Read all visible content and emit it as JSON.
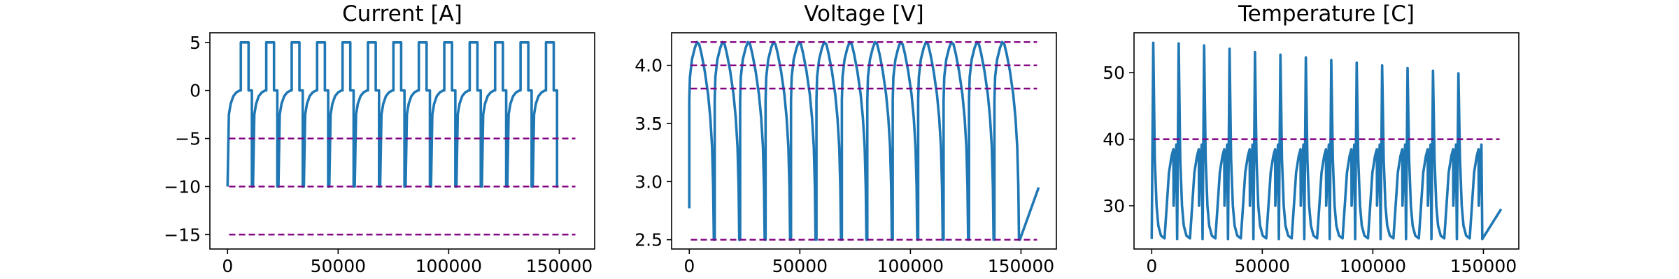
{
  "chart_data": [
    {
      "type": "line",
      "title": "Current [A]",
      "xlabel": "",
      "ylabel": "",
      "xlim": [
        -8000,
        166000
      ],
      "ylim": [
        -16.5,
        6
      ],
      "xticks": [
        0,
        50000,
        100000,
        150000
      ],
      "yticks": [
        5,
        0,
        -5,
        -10,
        -15
      ],
      "reference_lines": [
        -5,
        -10,
        -15
      ],
      "cycle_period": 11500,
      "num_cycles": 13,
      "x_end": 158000,
      "series": [
        {
          "values_per_cycle": [
            {
              "x": 0,
              "y": -10
            },
            {
              "x": 600,
              "y": -2.5
            },
            {
              "x": 1400,
              "y": -1.4
            },
            {
              "x": 2600,
              "y": -0.6
            },
            {
              "x": 4000,
              "y": -0.2
            },
            {
              "x": 5500,
              "y": 0
            },
            {
              "x": 6000,
              "y": 0
            },
            {
              "x": 6000,
              "y": 5
            },
            {
              "x": 9500,
              "y": 5
            },
            {
              "x": 9500,
              "y": 0
            },
            {
              "x": 11000,
              "y": 0
            },
            {
              "x": 11000,
              "y": -10
            },
            {
              "x": 11500,
              "y": -10
            }
          ]
        }
      ]
    },
    {
      "type": "line",
      "title": "Voltage [V]",
      "xlabel": "",
      "ylabel": "",
      "xlim": [
        -8000,
        166000
      ],
      "ylim": [
        2.42,
        4.28
      ],
      "xticks": [
        0,
        50000,
        100000,
        150000
      ],
      "yticks": [
        4.0,
        3.5,
        3.0,
        2.5
      ],
      "reference_lines": [
        4.2,
        4.0,
        3.8,
        2.5
      ],
      "cycle_period": 11500,
      "num_cycles": 13,
      "x_end": 158000,
      "series": [
        {
          "start_value": 2.77,
          "values_per_cycle": [
            {
              "x": 0,
              "y": 3.7
            },
            {
              "x": 300,
              "y": 3.9
            },
            {
              "x": 1200,
              "y": 4.05
            },
            {
              "x": 2500,
              "y": 4.15
            },
            {
              "x": 3500,
              "y": 4.2
            },
            {
              "x": 4500,
              "y": 4.18
            },
            {
              "x": 5500,
              "y": 4.1
            },
            {
              "x": 7000,
              "y": 3.95
            },
            {
              "x": 8500,
              "y": 3.75
            },
            {
              "x": 9500,
              "y": 3.55
            },
            {
              "x": 10300,
              "y": 3.3
            },
            {
              "x": 10800,
              "y": 2.95
            },
            {
              "x": 11100,
              "y": 2.5
            },
            {
              "x": 11500,
              "y": 2.5
            }
          ],
          "end_value": 2.95
        }
      ]
    },
    {
      "type": "line",
      "title": "Temperature [C]",
      "xlabel": "",
      "ylabel": "",
      "xlim": [
        -8000,
        166000
      ],
      "ylim": [
        23.5,
        56
      ],
      "xticks": [
        0,
        50000,
        100000,
        150000
      ],
      "yticks": [
        50,
        40,
        30
      ],
      "reference_lines": [
        40
      ],
      "cycle_period": 11500,
      "num_cycles": 13,
      "x_end": 158000,
      "series": [
        {
          "peak_values": [
            54.5,
            54.4,
            54.1,
            53.6,
            53.1,
            52.7,
            52.3,
            51.9,
            51.5,
            51.1,
            50.7,
            50.3,
            49.9
          ],
          "values_per_cycle": [
            {
              "x": 0,
              "y": 25
            },
            {
              "x": 700,
              "y": "peak"
            },
            {
              "x": 1400,
              "y": 37
            },
            {
              "x": 2200,
              "y": 30
            },
            {
              "x": 3000,
              "y": 27
            },
            {
              "x": 4200,
              "y": 25.5
            },
            {
              "x": 5800,
              "y": 25.1
            },
            {
              "x": 6800,
              "y": 30
            },
            {
              "x": 7800,
              "y": 35
            },
            {
              "x": 9000,
              "y": 37.5
            },
            {
              "x": 9800,
              "y": 38.5
            },
            {
              "x": 9900,
              "y": 30
            },
            {
              "x": 10600,
              "y": 36
            },
            {
              "x": 11100,
              "y": 39.2
            },
            {
              "x": 11500,
              "y": 25
            }
          ],
          "end_value": 29.5
        }
      ]
    }
  ],
  "colors": {
    "series": "#1f77b4",
    "reference": "#800080",
    "axes": "#000000",
    "background": "#ffffff"
  }
}
